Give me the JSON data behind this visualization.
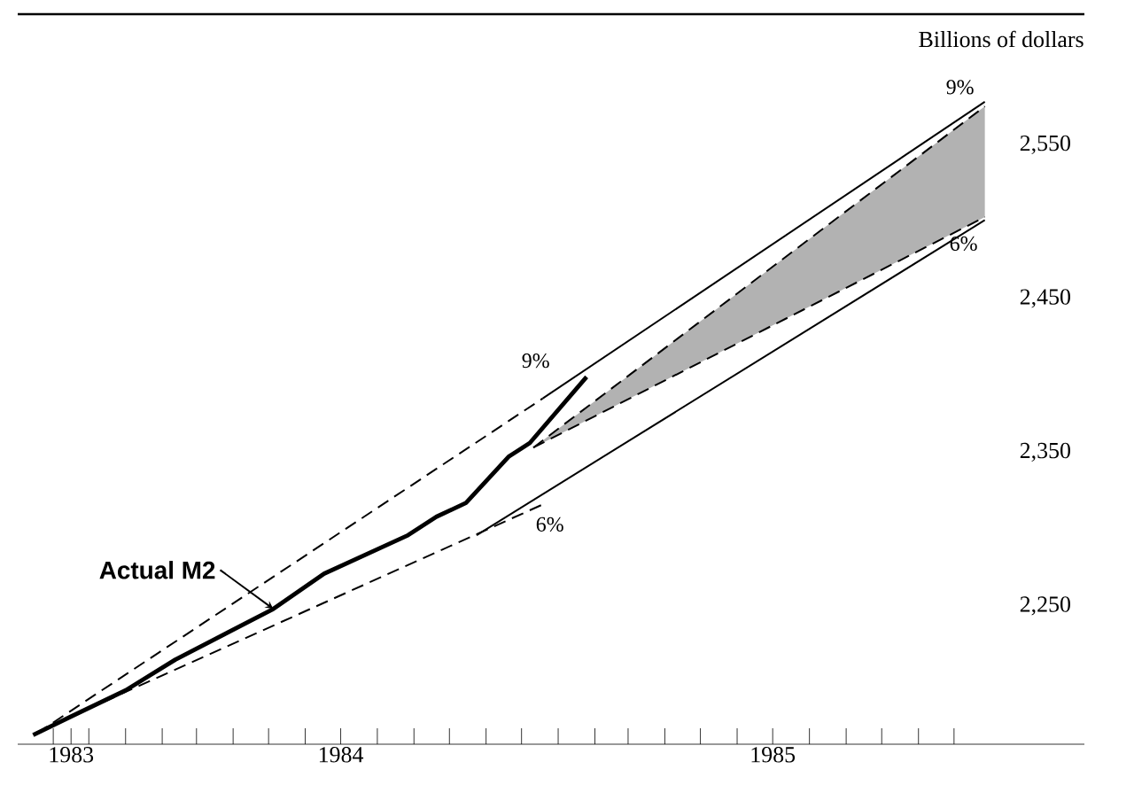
{
  "chart_data": {
    "type": "line",
    "ylabel": "Billions of dollars",
    "xlim": [
      "1983-10-02",
      "1986-03-21"
    ],
    "ylim": [
      2160,
      2635
    ],
    "xticks": [
      {
        "value": "1983-11-16",
        "label": "1983"
      },
      {
        "value": "1984-07-01",
        "label": "1984"
      },
      {
        "value": "1985-07-01",
        "label": "1985"
      },
      {
        "value": "1983-11-01",
        "label": null
      },
      {
        "value": "1983-12-01",
        "label": null
      },
      {
        "value": "1984-01-01",
        "label": null
      },
      {
        "value": "1984-02-01",
        "label": null
      },
      {
        "value": "1984-03-01",
        "label": null
      },
      {
        "value": "1984-04-01",
        "label": null
      },
      {
        "value": "1984-05-01",
        "label": null
      },
      {
        "value": "1984-06-01",
        "label": null
      },
      {
        "value": "1984-08-01",
        "label": null
      },
      {
        "value": "1984-09-01",
        "label": null
      },
      {
        "value": "1984-10-01",
        "label": null
      },
      {
        "value": "1984-11-01",
        "label": null
      },
      {
        "value": "1984-12-01",
        "label": null
      },
      {
        "value": "1985-01-01",
        "label": null
      },
      {
        "value": "1985-02-01",
        "label": null
      },
      {
        "value": "1985-03-01",
        "label": null
      },
      {
        "value": "1985-04-01",
        "label": null
      },
      {
        "value": "1985-05-01",
        "label": null
      },
      {
        "value": "1985-06-01",
        "label": null
      },
      {
        "value": "1985-08-01",
        "label": null
      },
      {
        "value": "1985-09-01",
        "label": null
      },
      {
        "value": "1985-10-01",
        "label": null
      },
      {
        "value": "1985-11-01",
        "label": null
      },
      {
        "value": "1985-12-01",
        "label": null
      }
    ],
    "yticks": [
      {
        "value": 2250,
        "label": "2,250"
      },
      {
        "value": 2350,
        "label": "2,350"
      },
      {
        "value": 2450,
        "label": "2,450"
      },
      {
        "value": 2550,
        "label": "2,550"
      }
    ],
    "grid": false,
    "series": [
      {
        "name": "Actual M2",
        "color": "#000000",
        "line_style": "solid",
        "x": [
          "1983-10-15",
          "1983-11-16",
          "1984-01-01",
          "1984-02-12",
          "1984-05-05",
          "1984-06-17",
          "1984-08-27",
          "1984-09-20",
          "1984-10-15",
          "1984-11-20",
          "1984-12-08",
          "1985-01-25"
        ],
        "values": [
          2166,
          2178,
          2195,
          2215,
          2248,
          2271,
          2296,
          2308,
          2317,
          2347,
          2356,
          2399
        ]
      },
      {
        "color": "#000000",
        "line_style": "dashed",
        "x": [
          "1983-10-18",
          "1984-12-19"
        ],
        "values": [
          2167,
          2385
        ]
      },
      {
        "color": "#000000",
        "line_style": "solid",
        "x": [
          "1984-12-19",
          "1985-12-27"
        ],
        "values": [
          2385,
          2578
        ]
      },
      {
        "color": "#000000",
        "line_style": "dashed",
        "x": [
          "1983-11-13",
          "1984-12-19"
        ],
        "values": [
          2177,
          2316
        ]
      },
      {
        "color": "#000000",
        "line_style": "solid",
        "x": [
          "1984-10-24",
          "1985-12-27"
        ],
        "values": [
          2296,
          2501
        ]
      },
      {
        "color": "#000000",
        "line_style": "dashed",
        "x": [
          "1984-12-11",
          "1985-12-27"
        ],
        "values": [
          2353,
          2575
        ],
        "lower": [
          2353,
          2503
        ],
        "upper": [
          2353,
          2575
        ]
      },
      {
        "color": "#000000",
        "line_style": "dashed",
        "x": [
          "1984-12-11",
          "1985-12-27"
        ],
        "values": [
          2353,
          2503
        ]
      }
    ],
    "annotations": [
      "9%",
      "6%",
      "9%",
      "6%"
    ]
  }
}
